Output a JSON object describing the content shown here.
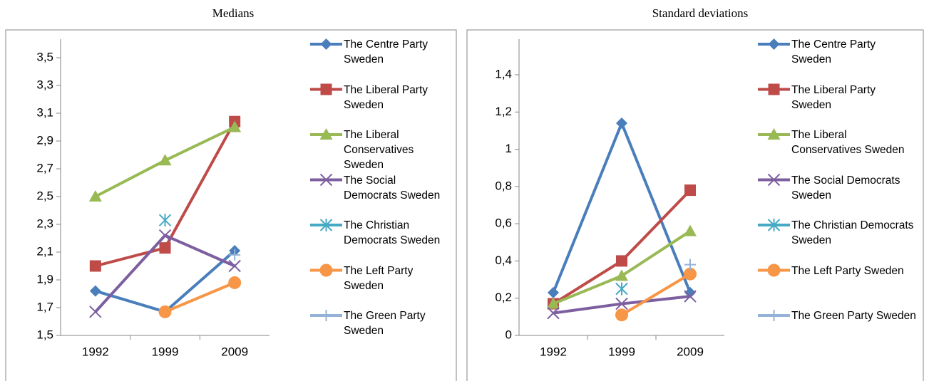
{
  "chart_data": [
    {
      "type": "line",
      "title": "Medians",
      "categories": [
        "1992",
        "1999",
        "2009"
      ],
      "ylim": [
        1.5,
        3.5
      ],
      "yticks": [
        {
          "value": 1.5,
          "label": "1,5"
        },
        {
          "value": 1.7,
          "label": "1,7"
        },
        {
          "value": 1.9,
          "label": "1,9"
        },
        {
          "value": 2.1,
          "label": "2,1"
        },
        {
          "value": 2.3,
          "label": "2,3"
        },
        {
          "value": 2.5,
          "label": "2,5"
        },
        {
          "value": 2.7,
          "label": "2,7"
        },
        {
          "value": 2.9,
          "label": "2,9"
        },
        {
          "value": 3.1,
          "label": "3,1"
        },
        {
          "value": 3.3,
          "label": "3,3"
        },
        {
          "value": 3.5,
          "label": "3,5"
        }
      ],
      "legend": "right",
      "series": [
        {
          "name": "The Centre Party Sweden",
          "color": "#4a7ebb",
          "marker": "diamond",
          "values": [
            1.82,
            1.67,
            2.11
          ]
        },
        {
          "name": "The Liberal Party Sweden",
          "color": "#be4b48",
          "marker": "square",
          "values": [
            2.0,
            2.13,
            3.04
          ]
        },
        {
          "name": "The Liberal Conservatives Sweden",
          "color": "#98b954",
          "marker": "triangle",
          "values": [
            2.5,
            2.76,
            3.0
          ]
        },
        {
          "name": "The Social Democrats Sweden",
          "color": "#7d5fa0",
          "marker": "x",
          "values": [
            1.67,
            2.22,
            2.0
          ]
        },
        {
          "name": "The Christian Democrats Sweden",
          "color": "#46aac5",
          "marker": "asterisk",
          "values": [
            null,
            2.33,
            null
          ]
        },
        {
          "name": "The Left Party Sweden",
          "color": "#f79646",
          "marker": "circle",
          "values": [
            null,
            1.67,
            1.88
          ]
        },
        {
          "name": "The Green Party Sweden",
          "color": "#95b3d7",
          "marker": "plus",
          "values": [
            null,
            null,
            2.08
          ]
        }
      ]
    },
    {
      "type": "line",
      "title": "Standard deviations",
      "categories": [
        "1992",
        "1999",
        "2009"
      ],
      "ylim": [
        0,
        1.4
      ],
      "yticks": [
        0,
        {
          "value": 0.2,
          "label": "0,2"
        },
        {
          "value": 0.4,
          "label": "0,4"
        },
        {
          "value": 0.6,
          "label": "0,6"
        },
        {
          "value": 0.8,
          "label": "0,8"
        },
        1,
        {
          "value": 1.2,
          "label": "1,2"
        },
        {
          "value": 1.4,
          "label": "1,4"
        }
      ],
      "legend": "right",
      "series": [
        {
          "name": "The Centre Party Sweden",
          "color": "#4a7ebb",
          "marker": "diamond",
          "values": [
            0.23,
            1.14,
            0.23
          ]
        },
        {
          "name": "The Liberal Party Sweden",
          "color": "#be4b48",
          "marker": "square",
          "values": [
            0.17,
            0.4,
            0.78
          ]
        },
        {
          "name": "The Liberal Conservatives Sweden",
          "color": "#98b954",
          "marker": "triangle",
          "values": [
            0.17,
            0.32,
            0.56
          ]
        },
        {
          "name": "The Social Democrats Sweden",
          "color": "#7d5fa0",
          "marker": "x",
          "values": [
            0.12,
            0.17,
            0.21
          ]
        },
        {
          "name": "The Christian Democrats Sweden",
          "color": "#46aac5",
          "marker": "asterisk",
          "values": [
            null,
            0.25,
            null
          ]
        },
        {
          "name": "The Left Party Sweden",
          "color": "#f79646",
          "marker": "circle",
          "values": [
            null,
            0.11,
            0.33
          ]
        },
        {
          "name": "The Green Party Sweden",
          "color": "#95b3d7",
          "marker": "plus",
          "values": [
            null,
            null,
            0.38
          ]
        }
      ]
    }
  ]
}
